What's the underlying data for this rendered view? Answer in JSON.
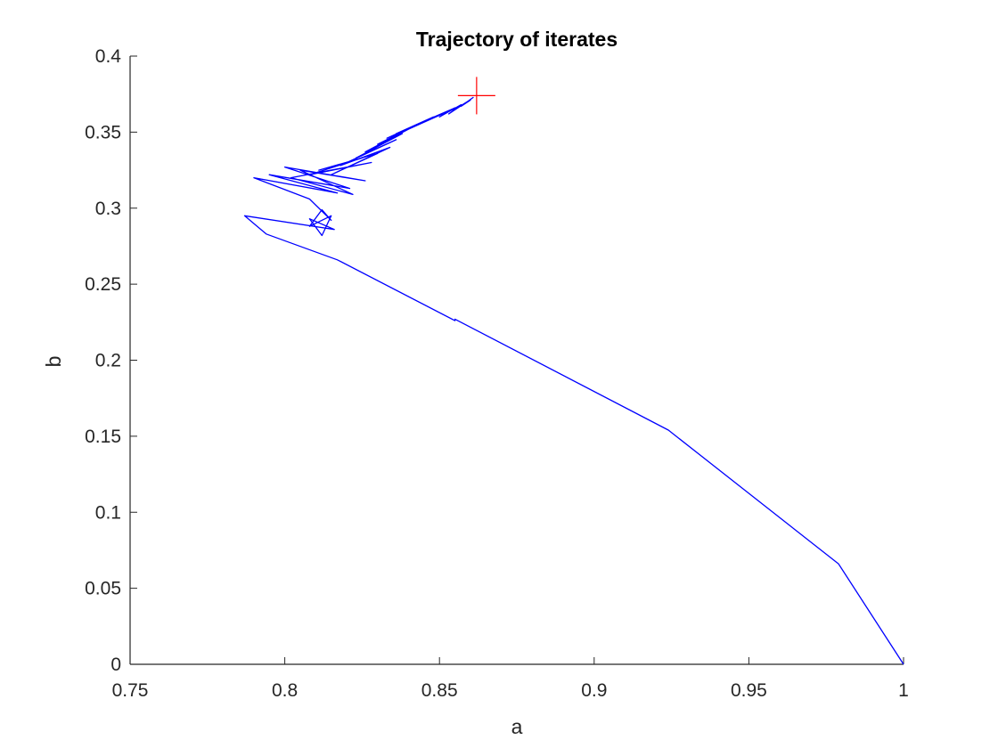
{
  "chart_data": {
    "type": "line",
    "title": "Trajectory of iterates",
    "xlabel": "a",
    "ylabel": "b",
    "xlim": [
      0.75,
      1
    ],
    "ylim": [
      0,
      0.4
    ],
    "xticks": [
      0.75,
      0.8,
      0.85,
      0.9,
      0.95,
      1
    ],
    "xtick_labels": [
      "0.75",
      "0.8",
      "0.85",
      "0.9",
      "0.95",
      "1"
    ],
    "yticks": [
      0,
      0.05,
      0.1,
      0.15,
      0.2,
      0.25,
      0.3,
      0.35,
      0.4
    ],
    "ytick_labels": [
      "0",
      "0.05",
      "0.1",
      "0.15",
      "0.2",
      "0.25",
      "0.3",
      "0.35",
      "0.4"
    ],
    "grid": false,
    "series": [
      {
        "color": "#0000ff",
        "x": [
          1.0,
          0.979,
          0.924,
          0.855,
          0.855,
          0.817,
          0.794,
          0.787,
          0.816,
          0.808,
          0.812,
          0.815,
          0.808,
          0.812,
          0.815,
          0.808,
          0.79,
          0.817,
          0.795,
          0.821,
          0.8,
          0.826,
          0.805,
          0.822,
          0.802,
          0.828,
          0.808,
          0.825,
          0.811,
          0.83,
          0.815,
          0.834,
          0.818,
          0.836,
          0.823,
          0.838,
          0.826,
          0.84,
          0.83,
          0.843,
          0.833,
          0.846,
          0.836,
          0.848,
          0.84,
          0.851,
          0.843,
          0.853,
          0.846,
          0.855,
          0.85,
          0.857,
          0.853,
          0.859,
          0.855,
          0.86,
          0.857,
          0.861
        ],
        "y": [
          0.0,
          0.066,
          0.154,
          0.227,
          0.226,
          0.266,
          0.283,
          0.295,
          0.286,
          0.293,
          0.282,
          0.295,
          0.288,
          0.299,
          0.292,
          0.306,
          0.32,
          0.31,
          0.322,
          0.313,
          0.327,
          0.318,
          0.325,
          0.309,
          0.32,
          0.33,
          0.322,
          0.333,
          0.325,
          0.336,
          0.322,
          0.34,
          0.328,
          0.345,
          0.333,
          0.349,
          0.337,
          0.352,
          0.342,
          0.355,
          0.346,
          0.358,
          0.349,
          0.36,
          0.352,
          0.362,
          0.355,
          0.364,
          0.358,
          0.366,
          0.36,
          0.368,
          0.362,
          0.37,
          0.365,
          0.371,
          0.367,
          0.373
        ]
      }
    ],
    "marker": {
      "shape": "plus",
      "color": "#ff0000",
      "x": 0.862,
      "y": 0.374
    }
  }
}
